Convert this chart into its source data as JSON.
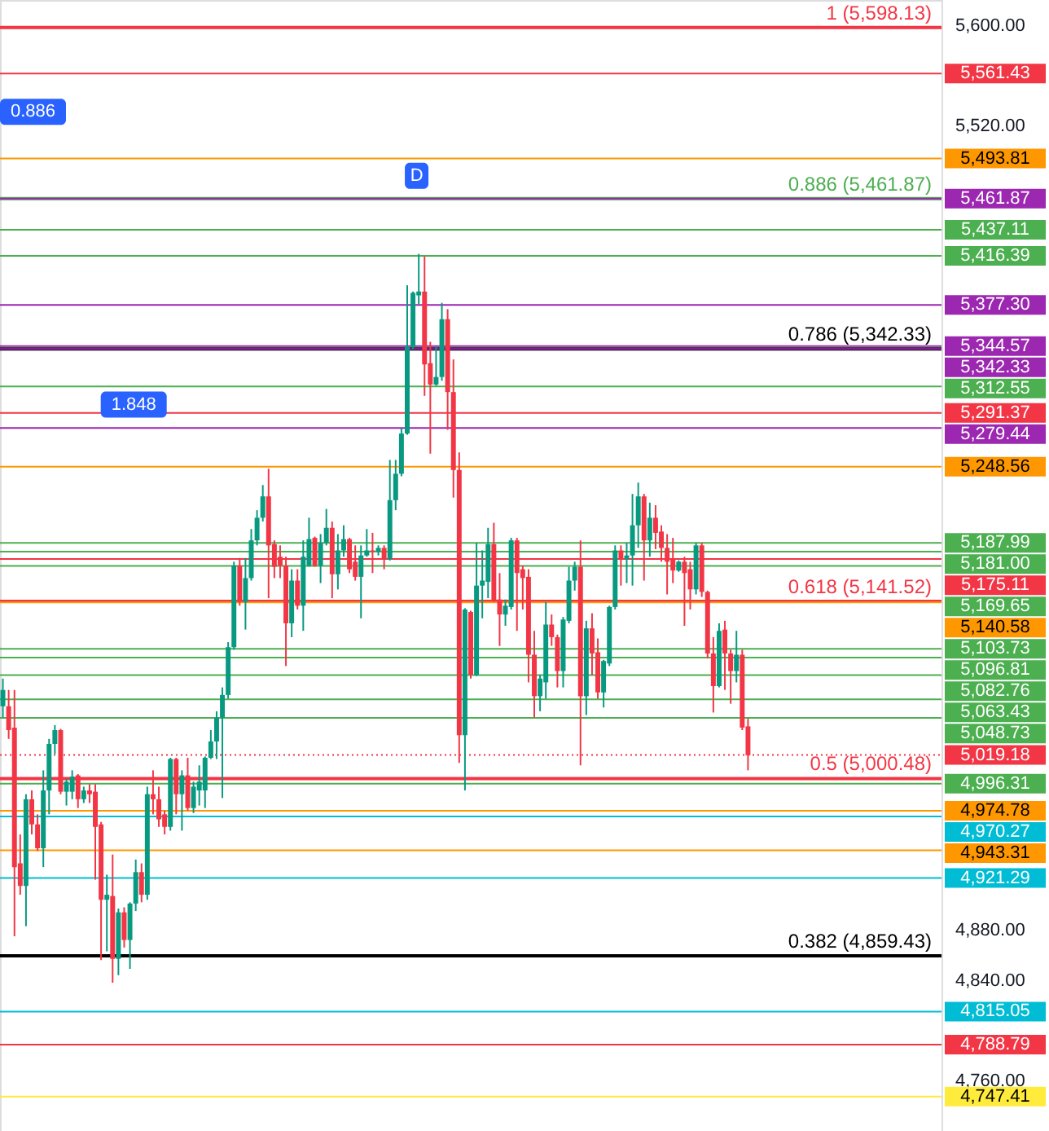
{
  "chart_data": {
    "type": "candlestick",
    "categories": [
      null,
      null,
      null,
      null,
      null,
      null,
      null,
      null,
      null,
      null,
      null,
      null,
      null,
      null,
      null,
      null,
      null,
      null,
      null,
      null,
      null,
      null,
      null,
      null,
      null,
      null,
      null,
      null,
      null,
      null,
      null,
      null,
      null,
      null,
      null,
      null,
      null,
      null,
      null,
      null,
      null,
      null,
      null,
      null,
      null,
      null,
      null,
      null,
      null,
      null,
      null,
      null,
      null,
      null,
      null,
      null,
      null,
      null,
      null,
      null,
      null,
      null,
      null,
      null,
      null,
      null,
      null,
      null,
      null,
      null,
      null,
      null,
      null,
      null,
      null,
      null,
      null,
      null,
      null,
      null,
      null,
      null,
      null,
      null,
      null,
      null,
      null,
      null,
      null,
      null,
      null,
      null,
      null,
      null,
      null,
      null,
      null,
      null,
      null,
      null,
      null,
      null,
      null,
      null,
      null,
      null,
      null,
      null,
      null,
      null,
      null,
      null,
      null,
      null,
      null,
      null,
      null,
      null,
      null,
      null,
      null,
      null,
      null,
      null,
      null,
      null,
      null,
      null,
      null,
      null,
      null,
      null,
      null,
      null,
      null,
      null,
      null,
      null,
      null,
      null,
      null,
      null,
      null,
      null,
      null,
      null,
      null,
      null,
      null,
      null,
      null,
      null,
      null,
      null,
      null,
      null,
      null,
      null,
      null,
      null,
      null,
      null,
      null
    ],
    "ohlc": [
      [
        5058,
        5080,
        5049,
        5071
      ],
      [
        5058,
        5071,
        5032,
        5039
      ],
      [
        5041,
        5071,
        4875,
        4930
      ],
      [
        4933,
        4956,
        4908,
        4915
      ],
      [
        4915,
        4988,
        4883,
        4984
      ],
      [
        4984,
        4991,
        4956,
        4964
      ],
      [
        4964,
        4972,
        4943,
        4945
      ],
      [
        4945,
        5007,
        4930,
        4991
      ],
      [
        4991,
        5032,
        4972,
        5028
      ],
      [
        5028,
        5043,
        5020,
        5039
      ],
      [
        5039,
        5040,
        4988,
        4990
      ],
      [
        4990,
        5000,
        4979,
        4998
      ],
      [
        4990,
        5007,
        4984,
        5002
      ],
      [
        5003,
        5004,
        4977,
        4984
      ],
      [
        4984,
        4994,
        4981,
        4991
      ],
      [
        4991,
        4996,
        4981,
        4988
      ],
      [
        4990,
        4996,
        4920,
        4962
      ],
      [
        4964,
        4966,
        4856,
        4904
      ],
      [
        4904,
        4924,
        4863,
        4908
      ],
      [
        4907,
        4940,
        4838,
        4857
      ],
      [
        4857,
        4897,
        4844,
        4894
      ],
      [
        4894,
        4898,
        4866,
        4872
      ],
      [
        4872,
        4902,
        4849,
        4901
      ],
      [
        4901,
        4936,
        4895,
        4926
      ],
      [
        4926,
        4933,
        4902,
        4908
      ],
      [
        4908,
        4994,
        4904,
        4988
      ],
      [
        4988,
        5007,
        4972,
        4984
      ],
      [
        4984,
        4994,
        4962,
        4968
      ],
      [
        4972,
        4975,
        4956,
        4962
      ],
      [
        4962,
        5017,
        4959,
        5016
      ],
      [
        5016,
        5017,
        4972,
        4988
      ],
      [
        4988,
        5007,
        4959,
        5003
      ],
      [
        5003,
        5017,
        4975,
        4977
      ],
      [
        4977,
        4998,
        4973,
        4994
      ],
      [
        4991,
        5011,
        4979,
        4998
      ],
      [
        4991,
        5018,
        4977,
        5017
      ],
      [
        5017,
        5039,
        5016,
        5030
      ],
      [
        5030,
        5054,
        5016,
        5049
      ],
      [
        5049,
        5073,
        4985,
        5067
      ],
      [
        5067,
        5109,
        5064,
        5105
      ],
      [
        5105,
        5173,
        5103,
        5170
      ],
      [
        5170,
        5176,
        5138,
        5141
      ],
      [
        5141,
        5176,
        5119,
        5160
      ],
      [
        5160,
        5199,
        5158,
        5190
      ],
      [
        5190,
        5214,
        5186,
        5208
      ],
      [
        5208,
        5234,
        5205,
        5225
      ],
      [
        5225,
        5247,
        5144,
        5186
      ],
      [
        5187,
        5190,
        5160,
        5169
      ],
      [
        5177,
        5186,
        5160,
        5170
      ],
      [
        5170,
        5177,
        5090,
        5124
      ],
      [
        5124,
        5167,
        5113,
        5158
      ],
      [
        5158,
        5167,
        5135,
        5138
      ],
      [
        5138,
        5190,
        5118,
        5177
      ],
      [
        5170,
        5208,
        5169,
        5191
      ],
      [
        5192,
        5193,
        5169,
        5170
      ],
      [
        5170,
        5195,
        5156,
        5188
      ],
      [
        5188,
        5215,
        5186,
        5200
      ],
      [
        5200,
        5205,
        5144,
        5163
      ],
      [
        5163,
        5195,
        5151,
        5182
      ],
      [
        5182,
        5202,
        5177,
        5191
      ],
      [
        5191,
        5192,
        5164,
        5167
      ],
      [
        5173,
        5186,
        5158,
        5161
      ],
      [
        5161,
        5186,
        5128,
        5178
      ],
      [
        5178,
        5199,
        5177,
        5182
      ],
      [
        5182,
        5196,
        5164,
        5181
      ],
      [
        5181,
        5186,
        5178,
        5184
      ],
      [
        5184,
        5186,
        5167,
        5175
      ],
      [
        5175,
        5254,
        5174,
        5222
      ],
      [
        5222,
        5254,
        5214,
        5243
      ],
      [
        5243,
        5279,
        5241,
        5275
      ],
      [
        5275,
        5393,
        5274,
        5344
      ],
      [
        5344,
        5388,
        5342,
        5387
      ],
      [
        5385,
        5418,
        5378,
        5388
      ],
      [
        5388,
        5416,
        5305,
        5330
      ],
      [
        5331,
        5348,
        5259,
        5314
      ],
      [
        5314,
        5344,
        5313,
        5320
      ],
      [
        5320,
        5379,
        5317,
        5366
      ],
      [
        5366,
        5374,
        5278,
        5308
      ],
      [
        5308,
        5334,
        5224,
        5246
      ],
      [
        5246,
        5260,
        5013,
        5035
      ],
      [
        5035,
        5136,
        4991,
        5135
      ],
      [
        5133,
        5134,
        5080,
        5083
      ],
      [
        5083,
        5188,
        5082,
        5154
      ],
      [
        5154,
        5182,
        5128,
        5158
      ],
      [
        5157,
        5200,
        5144,
        5187
      ],
      [
        5187,
        5204,
        5141,
        5142
      ],
      [
        5143,
        5164,
        5106,
        5131
      ],
      [
        5131,
        5143,
        5122,
        5138
      ],
      [
        5137,
        5192,
        5135,
        5190
      ],
      [
        5190,
        5192,
        5118,
        5164
      ],
      [
        5167,
        5170,
        5135,
        5160
      ],
      [
        5161,
        5167,
        5077,
        5099
      ],
      [
        5099,
        5118,
        5049,
        5066
      ],
      [
        5066,
        5083,
        5054,
        5080
      ],
      [
        5077,
        5141,
        5064,
        5123
      ],
      [
        5123,
        5131,
        5106,
        5113
      ],
      [
        5113,
        5115,
        5073,
        5086
      ],
      [
        5086,
        5129,
        5073,
        5127
      ],
      [
        5126,
        5169,
        5124,
        5158
      ],
      [
        5158,
        5173,
        5150,
        5169
      ],
      [
        5169,
        5190,
        5011,
        5066
      ],
      [
        5066,
        5126,
        5051,
        5120
      ],
      [
        5120,
        5132,
        5083,
        5100
      ],
      [
        5101,
        5112,
        5064,
        5069
      ],
      [
        5069,
        5095,
        5057,
        5094
      ],
      [
        5092,
        5138,
        5090,
        5137
      ],
      [
        5137,
        5186,
        5135,
        5182
      ],
      [
        5182,
        5186,
        5154,
        5175
      ],
      [
        5175,
        5188,
        5156,
        5178
      ],
      [
        5178,
        5227,
        5154,
        5202
      ],
      [
        5202,
        5236,
        5184,
        5225
      ],
      [
        5225,
        5227,
        5158,
        5190
      ],
      [
        5190,
        5220,
        5177,
        5208
      ],
      [
        5208,
        5218,
        5183,
        5196
      ],
      [
        5197,
        5202,
        5173,
        5184
      ],
      [
        5184,
        5195,
        5147,
        5173
      ],
      [
        5175,
        5192,
        5156,
        5166
      ],
      [
        5166,
        5174,
        5165,
        5173
      ],
      [
        5173,
        5177,
        5122,
        5164
      ],
      [
        5167,
        5173,
        5135,
        5151
      ],
      [
        5151,
        5188,
        5147,
        5186
      ],
      [
        5186,
        5188,
        5145,
        5149
      ],
      [
        5149,
        5150,
        5096,
        5100
      ],
      [
        5100,
        5113,
        5053,
        5074
      ],
      [
        5074,
        5124,
        5073,
        5118
      ],
      [
        5119,
        5126,
        5071,
        5100
      ],
      [
        5100,
        5103,
        5060,
        5086
      ],
      [
        5086,
        5118,
        5077,
        5099
      ],
      [
        5099,
        5103,
        5039,
        5041
      ],
      [
        5042,
        5048,
        5007,
        5019
      ],
      null,
      null,
      null,
      null,
      null,
      null,
      null,
      null,
      null,
      null,
      null,
      null,
      null,
      null,
      null,
      null,
      null,
      null,
      null,
      null,
      null,
      null,
      null,
      null,
      null,
      null,
      null,
      null,
      null,
      null,
      null,
      null,
      null
    ],
    "colors": [
      "#089981",
      "#f23645",
      "#f23645",
      "#f23645",
      "#089981",
      "#f23645",
      "#f23645",
      "#089981",
      "#089981",
      "#089981",
      "#f23645",
      "#089981",
      "#089981",
      "#f23645",
      "#089981",
      "#f23645",
      "#f23645",
      "#f23645",
      "#089981",
      "#f23645",
      "#089981",
      "#f23645",
      "#089981",
      "#089981",
      "#f23645",
      "#089981",
      "#f23645",
      "#f23645",
      "#f23645",
      "#089981",
      "#f23645",
      "#089981",
      "#f23645",
      "#089981",
      "#089981",
      "#089981",
      "#089981",
      "#089981",
      "#089981",
      "#089981",
      "#089981",
      "#f23645",
      "#089981",
      "#089981",
      "#089981",
      "#089981",
      "#f23645",
      "#f23645",
      "#f23645",
      "#f23645",
      "#089981",
      "#f23645",
      "#089981",
      "#089981",
      "#f23645",
      "#089981",
      "#089981",
      "#f23645",
      "#089981",
      "#089981",
      "#f23645",
      "#f23645",
      "#089981",
      "#089981",
      "#f23645",
      "#089981",
      "#f23645",
      "#089981",
      "#089981",
      "#089981",
      "#089981",
      "#089981",
      "#089981",
      "#f23645",
      "#f23645",
      "#089981",
      "#089981",
      "#f23645",
      "#f23645",
      "#f23645",
      "#089981",
      "#f23645",
      "#089981",
      "#089981",
      "#089981",
      "#f23645",
      "#f23645",
      "#089981",
      "#089981",
      "#f23645",
      "#f23645",
      "#f23645",
      "#f23645",
      "#089981",
      "#089981",
      "#f23645",
      "#f23645",
      "#089981",
      "#089981",
      "#089981",
      "#f23645",
      "#089981",
      "#f23645",
      "#f23645",
      "#089981",
      "#089981",
      "#089981",
      "#f23645",
      "#089981",
      "#089981",
      "#089981",
      "#f23645",
      "#089981",
      "#f23645",
      "#f23645",
      "#f23645",
      "#f23645",
      "#089981",
      "#f23645",
      "#f23645",
      "#089981",
      "#f23645",
      "#f23645",
      "#f23645",
      "#089981",
      "#f23645",
      "#f23645",
      "#089981",
      "#f23645",
      "#f23645",
      null,
      null,
      null,
      null,
      null,
      null,
      null,
      null,
      null,
      null,
      null,
      null,
      null,
      null,
      null,
      null,
      null,
      null,
      null,
      null,
      null,
      null,
      null,
      null,
      null,
      null,
      null,
      null,
      null,
      null,
      null,
      null,
      null
    ],
    "ylim": [
      4720,
      5620
    ],
    "yticks": [
      {
        "value": 4760,
        "label": "4,760.00"
      },
      {
        "value": 4840,
        "label": "4,840.00"
      },
      {
        "value": 4880,
        "label": "4,880.00"
      },
      {
        "value": 5520,
        "label": "5,520.00"
      },
      {
        "value": 5600,
        "label": "5,600.00"
      }
    ],
    "tick_labels": "y",
    "grid": false,
    "ref_lines": [
      {
        "axis": "y",
        "value": 5598.13,
        "color": "#f23645"
      },
      {
        "axis": "y",
        "value": 5461.87,
        "color": "#4caf50"
      },
      {
        "axis": "y",
        "value": 5342.33,
        "color": "#000000"
      },
      {
        "axis": "y",
        "value": 5141.52,
        "color": "#f23645"
      },
      {
        "axis": "y",
        "value": 5000.48,
        "color": "#f23645"
      },
      {
        "axis": "y",
        "value": 4859.43,
        "color": "#000000"
      },
      {
        "axis": "y",
        "value": 5561.43,
        "label": "5,561.43",
        "color": "#f23645"
      },
      {
        "axis": "y",
        "value": 5493.81,
        "label": "5,493.81",
        "color": "#ff9800"
      },
      {
        "axis": "y",
        "value": 5461.87,
        "label": "5,461.87",
        "color": "#9c27b0"
      },
      {
        "axis": "y",
        "value": 5437.11,
        "label": "5,437.11",
        "color": "#4caf50"
      },
      {
        "axis": "y",
        "value": 5416.39,
        "label": "5,416.39",
        "color": "#4caf50"
      },
      {
        "axis": "y",
        "value": 5377.3,
        "label": "5,377.30",
        "color": "#9c27b0"
      },
      {
        "axis": "y",
        "value": 5344.57,
        "label": "5,344.57",
        "color": "#9c27b0"
      },
      {
        "axis": "y",
        "value": 5342.33,
        "label": "5,342.33",
        "color": "#9c27b0"
      },
      {
        "axis": "y",
        "value": 5312.55,
        "label": "5,312.55",
        "color": "#4caf50"
      },
      {
        "axis": "y",
        "value": 5291.37,
        "label": "5,291.37",
        "color": "#f23645"
      },
      {
        "axis": "y",
        "value": 5279.44,
        "label": "5,279.44",
        "color": "#9c27b0"
      },
      {
        "axis": "y",
        "value": 5248.56,
        "label": "5,248.56",
        "color": "#ff9800"
      },
      {
        "axis": "y",
        "value": 5187.99,
        "label": "5,187.99",
        "color": "#4caf50"
      },
      {
        "axis": "y",
        "value": 5181.0,
        "label": "5,181.00",
        "color": "#4caf50"
      },
      {
        "axis": "y",
        "value": 5175.11,
        "label": "5,175.11",
        "color": "#f23645"
      },
      {
        "axis": "y",
        "value": 5169.65,
        "label": "5,169.65",
        "color": "#4caf50"
      },
      {
        "axis": "y",
        "value": 5140.58,
        "label": "5,140.58",
        "color": "#ff9800"
      },
      {
        "axis": "y",
        "value": 5103.73,
        "label": "5,103.73",
        "color": "#4caf50"
      },
      {
        "axis": "y",
        "value": 5096.81,
        "label": "5,096.81",
        "color": "#4caf50"
      },
      {
        "axis": "y",
        "value": 5082.76,
        "label": "5,082.76",
        "color": "#4caf50"
      },
      {
        "axis": "y",
        "value": 5063.43,
        "label": "5,063.43",
        "color": "#4caf50"
      },
      {
        "axis": "y",
        "value": 5048.73,
        "label": "5,048.73",
        "color": "#4caf50"
      },
      {
        "axis": "y",
        "value": 5019.18,
        "label": "5,019.18",
        "color": "#f23645",
        "line_style": "dotted"
      },
      {
        "axis": "y",
        "value": 4996.31,
        "label": "4,996.31",
        "color": "#4caf50"
      },
      {
        "axis": "y",
        "value": 4974.78,
        "label": "4,974.78",
        "color": "#ff9800"
      },
      {
        "axis": "y",
        "value": 4970.27,
        "label": "4,970.27",
        "color": "#00bcd4"
      },
      {
        "axis": "y",
        "value": 4943.31,
        "label": "4,943.31",
        "color": "#ff9800"
      },
      {
        "axis": "y",
        "value": 4921.29,
        "label": "4,921.29",
        "color": "#00bcd4"
      },
      {
        "axis": "y",
        "value": 4815.05,
        "label": "4,815.05",
        "color": "#00bcd4"
      },
      {
        "axis": "y",
        "value": 4788.79,
        "label": "4,788.79",
        "color": "#f23645"
      },
      {
        "axis": "y",
        "value": 4747.41,
        "label": "4,747.41",
        "color": "#ffeb3b"
      }
    ],
    "annotations": [
      {
        "text": "D",
        "y": 5461.87
      },
      {
        "text": "0.886",
        "y": 5531
      },
      {
        "text": "1.848",
        "y": 5298
      },
      {
        "text": "1 (5,598.13)",
        "y": 5598.13
      },
      {
        "text": "0.886 (5,461.87)",
        "y": 5461.87
      },
      {
        "text": "0.786 (5,342.33)",
        "y": 5342.33
      },
      {
        "text": "0.618 (5,141.52)",
        "y": 5141.52
      },
      {
        "text": "0.5 (5,000.48)",
        "y": 5000.48
      },
      {
        "text": "0.382 (4,859.43)",
        "y": 4859.43
      }
    ]
  }
}
